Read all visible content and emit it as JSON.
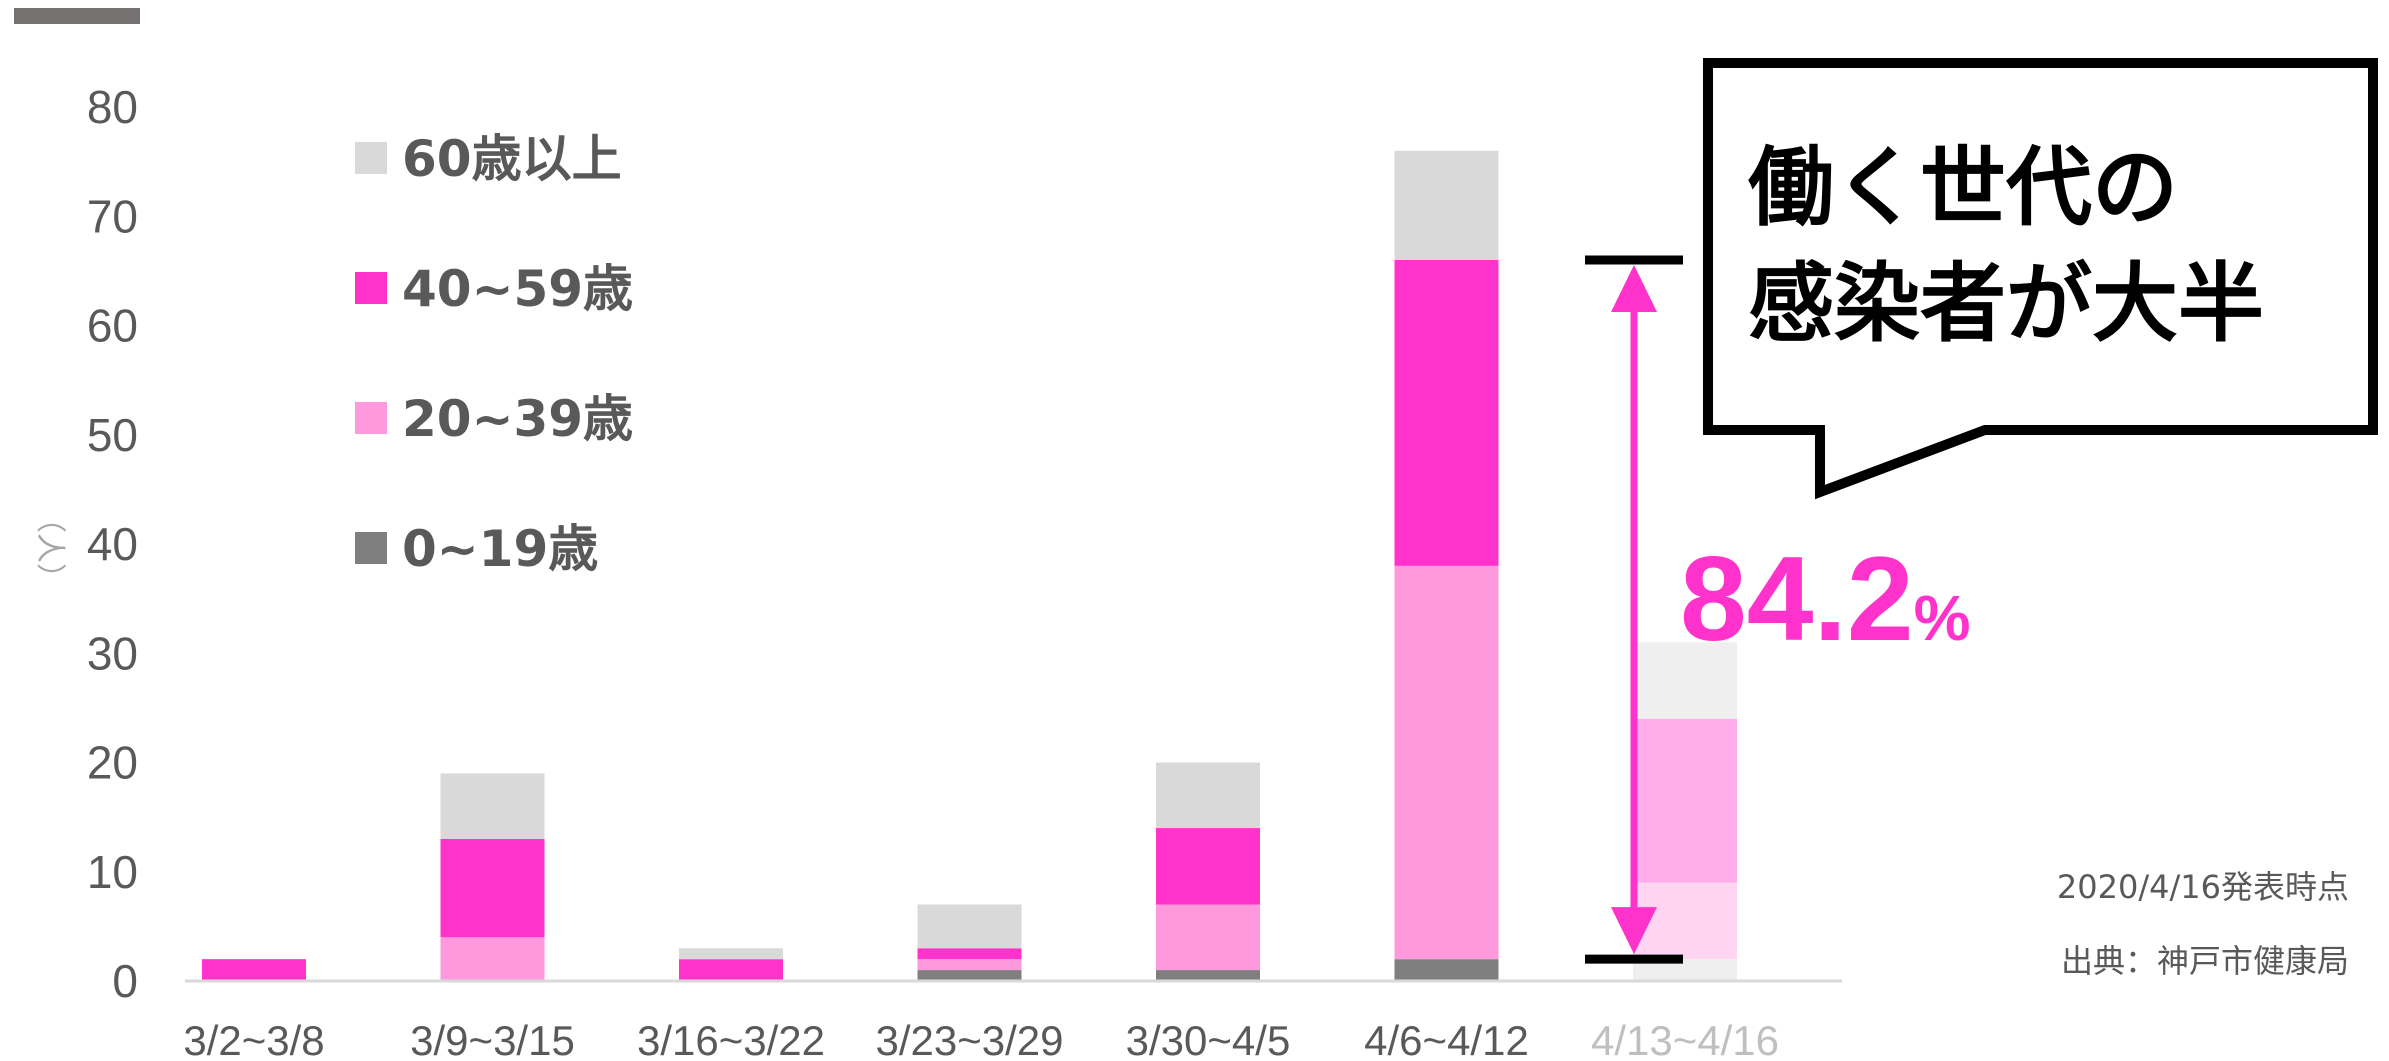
{
  "chart_data": {
    "type": "bar",
    "stacked": true,
    "categories": [
      "3/2~3/8",
      "3/9~3/15",
      "3/16~3/22",
      "3/23~3/29",
      "3/30~4/5",
      "4/6~4/12",
      "4/13~4/16"
    ],
    "series": [
      {
        "name": "0~19歳",
        "color": "#7f7f7f",
        "values": [
          0,
          0,
          0,
          1,
          1,
          2,
          0
        ]
      },
      {
        "name": "20~39歳",
        "color": "#ff99dd",
        "values": [
          0,
          4,
          0,
          1,
          6,
          36,
          0
        ]
      },
      {
        "name": "40~59歳",
        "color": "#ff33cc",
        "values": [
          2,
          9,
          2,
          1,
          7,
          28,
          0
        ]
      },
      {
        "name": "60歳以上",
        "color": "#d9d9d9",
        "values": [
          0,
          6,
          1,
          4,
          6,
          10,
          0
        ]
      }
    ],
    "faded_bar": {
      "category": "4/13~4/16",
      "segments": [
        {
          "series": "0~19歳",
          "value": 0
        },
        {
          "series": "60歳以上",
          "value": 2
        },
        {
          "series": "20~39歳",
          "value": 7
        },
        {
          "series": "40~59歳",
          "value": 15
        },
        {
          "series": "60歳以上",
          "value": 7
        }
      ]
    },
    "ylim": [
      0,
      80
    ],
    "yticks": [
      "0",
      "10",
      "20",
      "30",
      "40",
      "50",
      "60",
      "70",
      "80"
    ],
    "ylabel": "（人）",
    "legend_position": "top-left",
    "legend_order": [
      "60歳以上",
      "40~59歳",
      "20~39歳",
      "0~19歳"
    ],
    "grid": false
  },
  "annotation": {
    "callout_line1": "働く世代の",
    "callout_line2": "感染者が大半",
    "percent_value": "84.2",
    "percent_unit": "%",
    "bracket_from": 2,
    "bracket_to": 66
  },
  "notes": {
    "date": "2020/4/16発表時点",
    "source": "出典：神戸市健康局"
  },
  "colors": {
    "axis": "#d9d9d9",
    "text": "#595959",
    "faded_label": "#bfbfbf",
    "accent": "#ff33cc"
  }
}
